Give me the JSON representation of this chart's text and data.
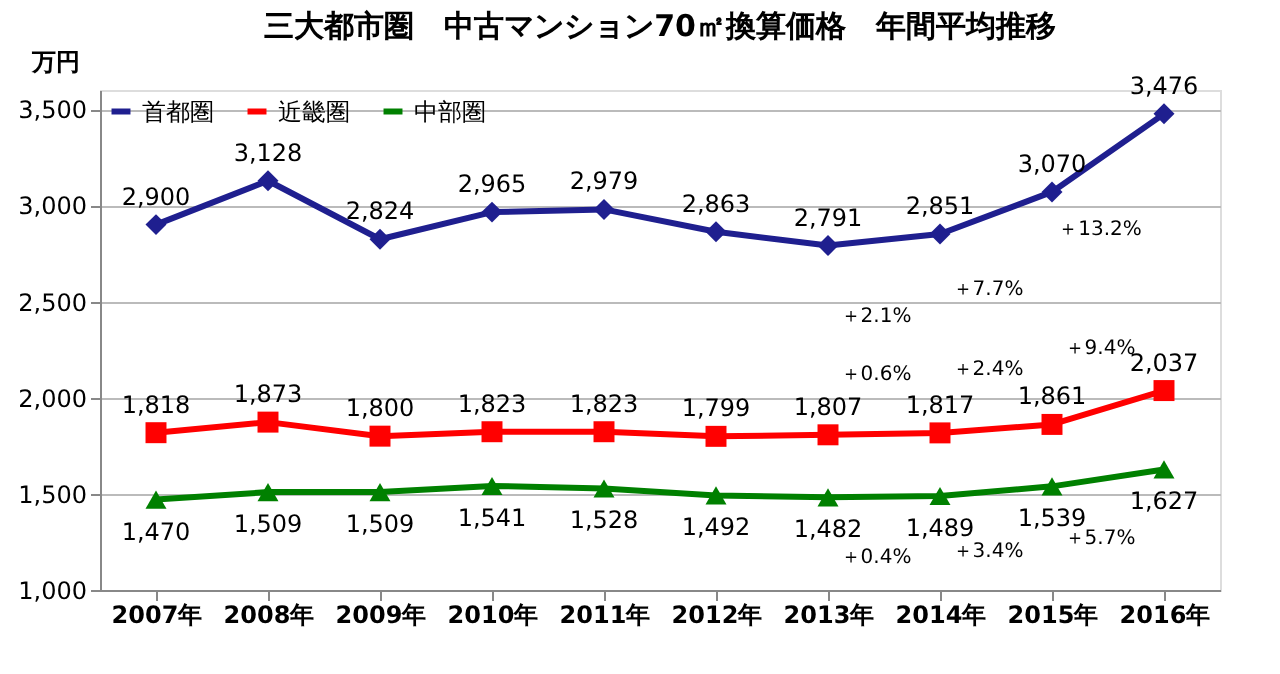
{
  "chart_data": {
    "type": "line",
    "title": "三大都市圏　中古マンション70㎡換算価格　年間平均推移",
    "ylabel": "万円",
    "categories": [
      "2007年",
      "2008年",
      "2009年",
      "2010年",
      "2011年",
      "2012年",
      "2013年",
      "2014年",
      "2015年",
      "2016年"
    ],
    "series": [
      {
        "name": "首都圏",
        "color": "#1f1f8f",
        "marker": "diamond",
        "values": [
          2900,
          3128,
          2824,
          2965,
          2979,
          2863,
          2791,
          2851,
          3070,
          3476
        ],
        "value_labels": [
          "2,900",
          "3,128",
          "2,824",
          "2,965",
          "2,979",
          "2,863",
          "2,791",
          "2,851",
          "3,070",
          "3,476"
        ]
      },
      {
        "name": "近畿圏",
        "color": "#ff0000",
        "marker": "square",
        "values": [
          1818,
          1873,
          1800,
          1823,
          1823,
          1799,
          1807,
          1817,
          1861,
          2037
        ],
        "value_labels": [
          "1,818",
          "1,873",
          "1,800",
          "1,823",
          "1,823",
          "1,799",
          "1,807",
          "1,817",
          "1,861",
          "2,037"
        ]
      },
      {
        "name": "中部圏",
        "color": "#008000",
        "marker": "triangle",
        "values": [
          1470,
          1509,
          1509,
          1541,
          1528,
          1492,
          1482,
          1489,
          1539,
          1627
        ],
        "value_labels": [
          "1,470",
          "1,509",
          "1,509",
          "1,541",
          "1,528",
          "1,492",
          "1,482",
          "1,489",
          "1,539",
          "1,627"
        ]
      }
    ],
    "ylim": [
      1000,
      3600
    ],
    "yticks": [
      {
        "value": 1000,
        "label": "1,000"
      },
      {
        "value": 1500,
        "label": "1,500"
      },
      {
        "value": 2000,
        "label": "2,000"
      },
      {
        "value": 2500,
        "label": "2,500"
      },
      {
        "value": 3000,
        "label": "3,000"
      },
      {
        "value": 3500,
        "label": "3,500"
      }
    ],
    "grid": "y",
    "legend": "top left",
    "line_style": "solid",
    "annotations": [
      "＋2.1%",
      "＋7.7%",
      "＋13.2%",
      "＋0.6%",
      "＋2.4%",
      "＋9.4%",
      "＋0.4%",
      "＋3.4%",
      "＋5.7%"
    ]
  }
}
